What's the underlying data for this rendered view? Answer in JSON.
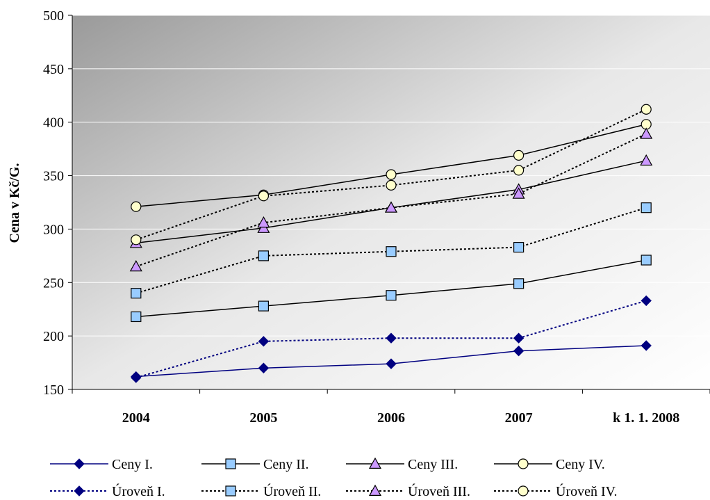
{
  "chart_data": {
    "type": "line",
    "title": "",
    "xlabel": "",
    "ylabel": "Cena v Kč/G.",
    "categories": [
      "2004",
      "2005",
      "2006",
      "2007",
      "k 1. 1. 2008"
    ],
    "ylim": [
      150,
      500
    ],
    "yticks": [
      150,
      200,
      250,
      300,
      350,
      400,
      450,
      500
    ],
    "grid": "horizontal",
    "legend_position": "bottom",
    "series": [
      {
        "name": "Ceny I.",
        "values": [
          162,
          170,
          174,
          186,
          191
        ],
        "marker": "diamond",
        "line": "solid",
        "color": "#000080",
        "fill": "#000080"
      },
      {
        "name": "Ceny II.",
        "values": [
          218,
          228,
          238,
          249,
          271
        ],
        "marker": "square",
        "line": "solid",
        "color": "#000000",
        "fill": "#99ccff"
      },
      {
        "name": "Ceny III.",
        "values": [
          287,
          301,
          320,
          337,
          364
        ],
        "marker": "triangle",
        "line": "solid",
        "color": "#000000",
        "fill": "#cc99ff"
      },
      {
        "name": "Ceny IV.",
        "values": [
          321,
          332,
          351,
          369,
          398
        ],
        "marker": "circle",
        "line": "solid",
        "color": "#000000",
        "fill": "#ffffcc"
      },
      {
        "name": "Úroveň I.",
        "values": [
          161,
          195,
          198,
          198,
          233
        ],
        "marker": "diamond",
        "line": "dotted",
        "color": "#000080",
        "fill": "#000080"
      },
      {
        "name": "Úroveň II.",
        "values": [
          240,
          275,
          279,
          283,
          320
        ],
        "marker": "square",
        "line": "dotted",
        "color": "#000000",
        "fill": "#99ccff"
      },
      {
        "name": "Úroveň III.",
        "values": [
          265,
          306,
          320,
          333,
          389
        ],
        "marker": "triangle",
        "line": "dotted",
        "color": "#000000",
        "fill": "#cc99ff"
      },
      {
        "name": "Úroveň IV.",
        "values": [
          290,
          331,
          341,
          355,
          412
        ],
        "marker": "circle",
        "line": "dotted",
        "color": "#000000",
        "fill": "#ffffcc"
      }
    ]
  }
}
